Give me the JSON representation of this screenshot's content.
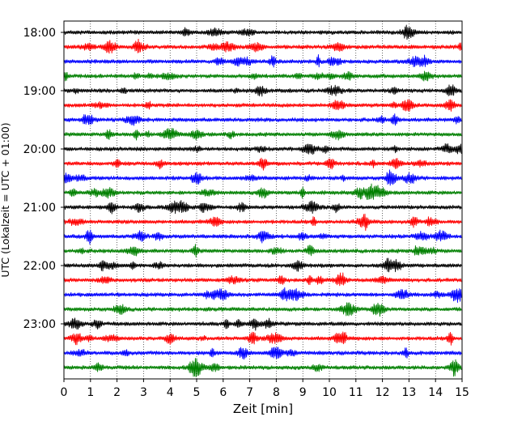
{
  "chart_data": {
    "type": "line",
    "title": "",
    "xlabel": "Zeit  [min]",
    "ylabel": "UTC (Lokalzeit = UTC + 01:00)",
    "xlim": [
      0,
      15
    ],
    "x_ticks": [
      "0",
      "1",
      "2",
      "3",
      "4",
      "5",
      "6",
      "7",
      "8",
      "9",
      "10",
      "11",
      "12",
      "13",
      "14",
      "15"
    ],
    "y_ticks": [
      "18:00",
      "19:00",
      "20:00",
      "21:00",
      "22:00",
      "23:00"
    ],
    "grid": {
      "x": true,
      "y": false,
      "style": "dotted"
    },
    "trace_interval_minutes": 15,
    "trace_colors": [
      "#000000",
      "#ff0000",
      "#0000ff",
      "#008000"
    ],
    "series": [
      {
        "start": "18:00"
      },
      {
        "start": "18:15"
      },
      {
        "start": "18:30"
      },
      {
        "start": "18:45"
      },
      {
        "start": "19:00"
      },
      {
        "start": "19:15"
      },
      {
        "start": "19:30"
      },
      {
        "start": "19:45"
      },
      {
        "start": "20:00"
      },
      {
        "start": "20:15"
      },
      {
        "start": "20:30"
      },
      {
        "start": "20:45"
      },
      {
        "start": "21:00"
      },
      {
        "start": "21:15"
      },
      {
        "start": "21:30"
      },
      {
        "start": "21:45"
      },
      {
        "start": "22:00"
      },
      {
        "start": "22:15"
      },
      {
        "start": "22:30"
      },
      {
        "start": "22:45"
      },
      {
        "start": "23:00"
      },
      {
        "start": "23:15"
      },
      {
        "start": "23:30"
      },
      {
        "start": "23:45"
      }
    ]
  }
}
